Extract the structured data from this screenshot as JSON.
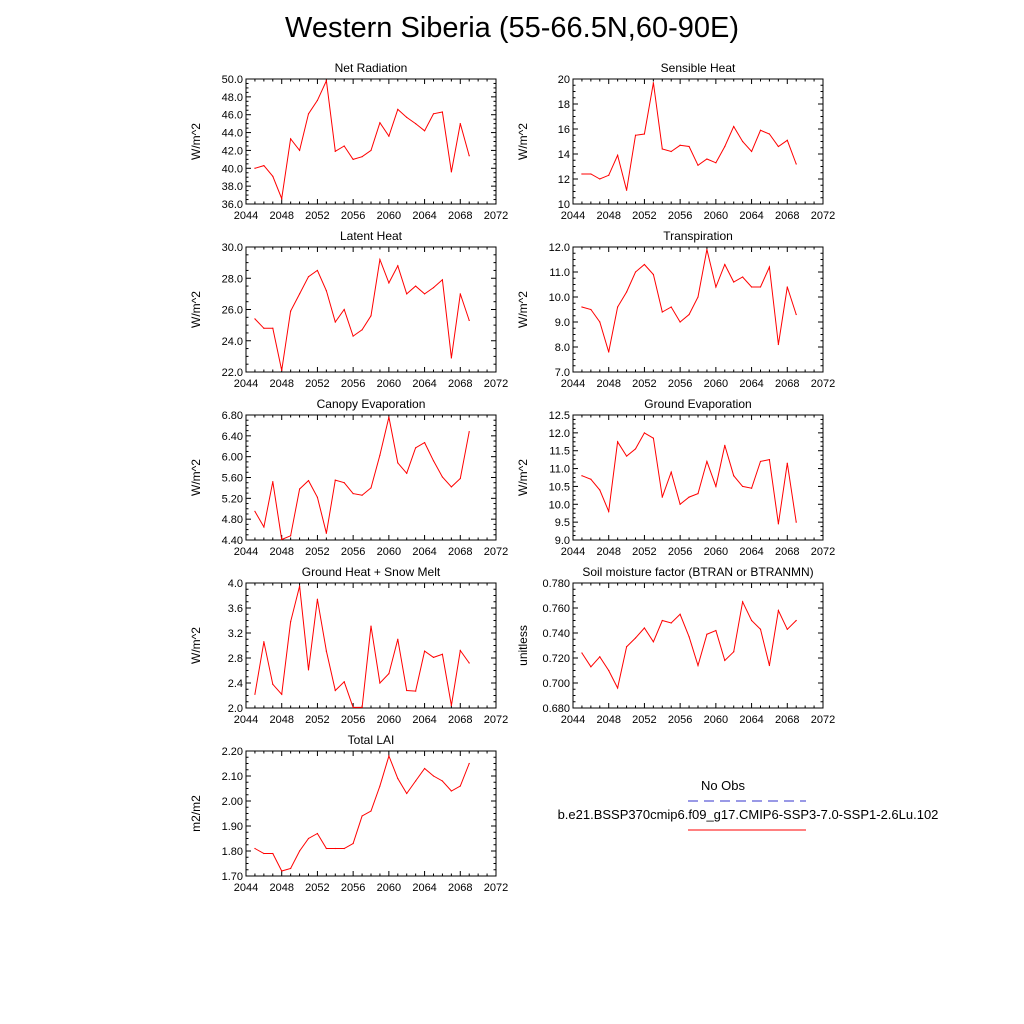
{
  "title": "Western Siberia (55-66.5N,60-90E)",
  "legend": {
    "obs_label": "No Obs",
    "case_label": "b.e21.BSSP370cmip6.f09_g17.CMIP6-SSP3-7.0-SSP1-2.6Lu.102",
    "obs_color": "#3333cc",
    "case_color": "#ff0000"
  },
  "chart_data": [
    {
      "type": "line",
      "title": "Net Radiation",
      "ylabel": "W/m^2",
      "xlim": [
        2044,
        2072
      ],
      "ylim": [
        36.0,
        50.0
      ],
      "xticks": [
        "2044",
        "2048",
        "2052",
        "2056",
        "2060",
        "2064",
        "2068",
        "2072"
      ],
      "yticks": [
        "36.0",
        "38.0",
        "40.0",
        "42.0",
        "44.0",
        "46.0",
        "48.0",
        "50.0"
      ],
      "x": [
        2045,
        2046,
        2047,
        2048,
        2049,
        2050,
        2051,
        2052,
        2053,
        2054,
        2055,
        2056,
        2057,
        2058,
        2059,
        2060,
        2061,
        2062,
        2063,
        2064,
        2065,
        2066,
        2067,
        2068,
        2069
      ],
      "series": [
        {
          "values": [
            40.0,
            40.3,
            39.1,
            36.6,
            43.3,
            42.0,
            46.1,
            47.6,
            49.8,
            41.9,
            42.5,
            41.0,
            41.3,
            42.0,
            45.1,
            43.6,
            46.6,
            45.7,
            45.0,
            44.2,
            46.1,
            46.3,
            39.6,
            45.0,
            41.4
          ],
          "color": "#ff0000"
        }
      ]
    },
    {
      "type": "line",
      "title": "Sensible Heat",
      "ylabel": "W/m^2",
      "xlim": [
        2044,
        2072
      ],
      "ylim": [
        10,
        20
      ],
      "xticks": [
        "2044",
        "2048",
        "2052",
        "2056",
        "2060",
        "2064",
        "2068",
        "2072"
      ],
      "yticks": [
        "10",
        "12",
        "14",
        "16",
        "18",
        "20"
      ],
      "x": [
        2045,
        2046,
        2047,
        2048,
        2049,
        2050,
        2051,
        2052,
        2053,
        2054,
        2055,
        2056,
        2057,
        2058,
        2059,
        2060,
        2061,
        2062,
        2063,
        2064,
        2065,
        2066,
        2067,
        2068,
        2069
      ],
      "series": [
        {
          "values": [
            12.4,
            12.4,
            12.0,
            12.3,
            13.9,
            11.1,
            15.5,
            15.6,
            19.7,
            14.4,
            14.2,
            14.7,
            14.6,
            13.1,
            13.6,
            13.3,
            14.6,
            16.2,
            15.0,
            14.2,
            15.9,
            15.6,
            14.6,
            15.1,
            13.2
          ],
          "color": "#ff0000"
        }
      ]
    },
    {
      "type": "line",
      "title": "Latent Heat",
      "ylabel": "W/m^2",
      "xlim": [
        2044,
        2072
      ],
      "ylim": [
        22.0,
        30.0
      ],
      "xticks": [
        "2044",
        "2048",
        "2052",
        "2056",
        "2060",
        "2064",
        "2068",
        "2072"
      ],
      "yticks": [
        "22.0",
        "24.0",
        "26.0",
        "28.0",
        "30.0"
      ],
      "x": [
        2045,
        2046,
        2047,
        2048,
        2049,
        2050,
        2051,
        2052,
        2053,
        2054,
        2055,
        2056,
        2057,
        2058,
        2059,
        2060,
        2061,
        2062,
        2063,
        2064,
        2065,
        2066,
        2067,
        2068,
        2069
      ],
      "series": [
        {
          "values": [
            25.4,
            24.8,
            24.8,
            22.1,
            25.9,
            27.0,
            28.1,
            28.5,
            27.2,
            25.2,
            26.0,
            24.3,
            24.7,
            25.6,
            29.2,
            27.7,
            28.8,
            27.0,
            27.5,
            27.0,
            27.4,
            27.9,
            22.9,
            27.0,
            25.3
          ],
          "color": "#ff0000"
        }
      ]
    },
    {
      "type": "line",
      "title": "Transpiration",
      "ylabel": "W/m^2",
      "xlim": [
        2044,
        2072
      ],
      "ylim": [
        7.0,
        12.0
      ],
      "xticks": [
        "2044",
        "2048",
        "2052",
        "2056",
        "2060",
        "2064",
        "2068",
        "2072"
      ],
      "yticks": [
        "7.0",
        "8.0",
        "9.0",
        "10.0",
        "11.0",
        "12.0"
      ],
      "x": [
        2045,
        2046,
        2047,
        2048,
        2049,
        2050,
        2051,
        2052,
        2053,
        2054,
        2055,
        2056,
        2057,
        2058,
        2059,
        2060,
        2061,
        2062,
        2063,
        2064,
        2065,
        2066,
        2067,
        2068,
        2069
      ],
      "series": [
        {
          "values": [
            9.6,
            9.5,
            9.0,
            7.8,
            9.6,
            10.2,
            11.0,
            11.3,
            10.9,
            9.4,
            9.6,
            9.0,
            9.3,
            10.0,
            11.9,
            10.4,
            11.3,
            10.6,
            10.8,
            10.4,
            10.4,
            11.2,
            8.1,
            10.4,
            9.3
          ],
          "color": "#ff0000"
        }
      ]
    },
    {
      "type": "line",
      "title": "Canopy Evaporation",
      "ylabel": "W/m^2",
      "xlim": [
        2044,
        2072
      ],
      "ylim": [
        4.4,
        6.8
      ],
      "xticks": [
        "2044",
        "2048",
        "2052",
        "2056",
        "2060",
        "2064",
        "2068",
        "2072"
      ],
      "yticks": [
        "4.40",
        "4.80",
        "5.20",
        "5.60",
        "6.00",
        "6.40",
        "6.80"
      ],
      "x": [
        2045,
        2046,
        2047,
        2048,
        2049,
        2050,
        2051,
        2052,
        2053,
        2054,
        2055,
        2056,
        2057,
        2058,
        2059,
        2060,
        2061,
        2062,
        2063,
        2064,
        2065,
        2066,
        2067,
        2068,
        2069
      ],
      "series": [
        {
          "values": [
            4.95,
            4.65,
            5.52,
            4.41,
            4.48,
            5.38,
            5.54,
            5.22,
            4.53,
            5.55,
            5.5,
            5.29,
            5.26,
            5.4,
            6.03,
            6.76,
            5.88,
            5.68,
            6.17,
            6.27,
            5.92,
            5.61,
            5.42,
            5.58,
            6.48
          ],
          "color": "#ff0000"
        }
      ]
    },
    {
      "type": "line",
      "title": "Ground Evaporation",
      "ylabel": "W/m^2",
      "xlim": [
        2044,
        2072
      ],
      "ylim": [
        9.0,
        12.5
      ],
      "xticks": [
        "2044",
        "2048",
        "2052",
        "2056",
        "2060",
        "2064",
        "2068",
        "2072"
      ],
      "yticks": [
        "9.0",
        "9.5",
        "10.0",
        "10.5",
        "11.0",
        "11.5",
        "12.0",
        "12.5"
      ],
      "x": [
        2045,
        2046,
        2047,
        2048,
        2049,
        2050,
        2051,
        2052,
        2053,
        2054,
        2055,
        2056,
        2057,
        2058,
        2059,
        2060,
        2061,
        2062,
        2063,
        2064,
        2065,
        2066,
        2067,
        2068,
        2069
      ],
      "series": [
        {
          "values": [
            10.8,
            10.7,
            10.4,
            9.8,
            11.75,
            11.35,
            11.55,
            12.0,
            11.85,
            10.2,
            10.9,
            10.0,
            10.2,
            10.3,
            11.2,
            10.5,
            11.65,
            10.8,
            10.5,
            10.45,
            11.2,
            11.25,
            9.45,
            11.15,
            9.5
          ],
          "color": "#ff0000"
        }
      ]
    },
    {
      "type": "line",
      "title": "Ground Heat + Snow Melt",
      "ylabel": "W/m^2",
      "xlim": [
        2044,
        2072
      ],
      "ylim": [
        2.0,
        4.0
      ],
      "xticks": [
        "2044",
        "2048",
        "2052",
        "2056",
        "2060",
        "2064",
        "2068",
        "2072"
      ],
      "yticks": [
        "2.0",
        "2.4",
        "2.8",
        "3.2",
        "3.6",
        "4.0"
      ],
      "x": [
        2045,
        2046,
        2047,
        2048,
        2049,
        2050,
        2051,
        2052,
        2053,
        2054,
        2055,
        2056,
        2057,
        2058,
        2059,
        2060,
        2061,
        2062,
        2063,
        2064,
        2065,
        2066,
        2067,
        2068,
        2069
      ],
      "series": [
        {
          "values": [
            2.22,
            3.06,
            2.38,
            2.22,
            3.38,
            3.95,
            2.61,
            3.74,
            2.91,
            2.28,
            2.42,
            2.01,
            2.01,
            3.31,
            2.4,
            2.55,
            3.1,
            2.28,
            2.27,
            2.91,
            2.81,
            2.86,
            2.04,
            2.92,
            2.72
          ],
          "color": "#ff0000"
        }
      ]
    },
    {
      "type": "line",
      "title": "Soil moisture factor (BTRAN or BTRANMN)",
      "ylabel": "unitless",
      "xlim": [
        2044,
        2072
      ],
      "ylim": [
        0.68,
        0.78
      ],
      "xticks": [
        "2044",
        "2048",
        "2052",
        "2056",
        "2060",
        "2064",
        "2068",
        "2072"
      ],
      "yticks": [
        "0.680",
        "0.700",
        "0.720",
        "0.740",
        "0.760",
        "0.780"
      ],
      "x": [
        2045,
        2046,
        2047,
        2048,
        2049,
        2050,
        2051,
        2052,
        2053,
        2054,
        2055,
        2056,
        2057,
        2058,
        2059,
        2060,
        2061,
        2062,
        2063,
        2064,
        2065,
        2066,
        2067,
        2068,
        2069
      ],
      "series": [
        {
          "values": [
            0.724,
            0.713,
            0.721,
            0.71,
            0.696,
            0.729,
            0.736,
            0.744,
            0.733,
            0.75,
            0.748,
            0.755,
            0.737,
            0.714,
            0.739,
            0.742,
            0.718,
            0.725,
            0.765,
            0.75,
            0.743,
            0.714,
            0.758,
            0.743,
            0.75
          ],
          "color": "#ff0000"
        }
      ]
    },
    {
      "type": "line",
      "title": "Total LAI",
      "ylabel": "m2/m2",
      "xlim": [
        2044,
        2072
      ],
      "ylim": [
        1.7,
        2.2
      ],
      "xticks": [
        "2044",
        "2048",
        "2052",
        "2056",
        "2060",
        "2064",
        "2068",
        "2072"
      ],
      "yticks": [
        "1.70",
        "1.80",
        "1.90",
        "2.00",
        "2.10",
        "2.20"
      ],
      "x": [
        2045,
        2046,
        2047,
        2048,
        2049,
        2050,
        2051,
        2052,
        2053,
        2054,
        2055,
        2056,
        2057,
        2058,
        2059,
        2060,
        2061,
        2062,
        2063,
        2064,
        2065,
        2066,
        2067,
        2068,
        2069
      ],
      "series": [
        {
          "values": [
            1.81,
            1.79,
            1.79,
            1.72,
            1.73,
            1.8,
            1.85,
            1.87,
            1.81,
            1.81,
            1.81,
            1.83,
            1.94,
            1.96,
            2.06,
            2.18,
            2.09,
            2.03,
            2.08,
            2.13,
            2.1,
            2.08,
            2.04,
            2.06,
            2.15
          ],
          "color": "#ff0000"
        }
      ]
    }
  ]
}
